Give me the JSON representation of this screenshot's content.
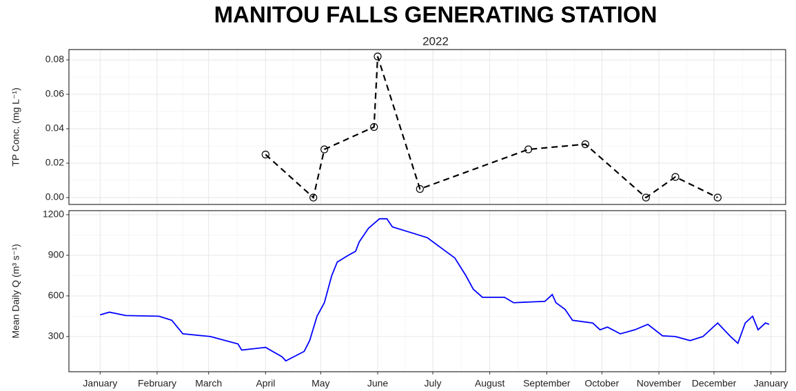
{
  "chart_data": [
    {
      "type": "line",
      "title": "MANITOU FALLS GENERATING STATION",
      "subtitle": "2022",
      "ylabel": "TP Conc. (mg L⁻¹)",
      "x": [
        "2022-04-01",
        "2022-04-27",
        "2022-05-03",
        "2022-05-30",
        "2022-06-01",
        "2022-06-24",
        "2022-08-22",
        "2022-09-22",
        "2022-10-25",
        "2022-11-10",
        "2022-12-03"
      ],
      "values": [
        0.025,
        0.0,
        0.028,
        0.041,
        0.082,
        0.005,
        0.028,
        0.031,
        0.0,
        0.012,
        0.0
      ],
      "color": "#000000",
      "linestyle": "dashed",
      "markers": true,
      "xlim": [
        "2021-12-15",
        "2023-01-09"
      ],
      "ylim": [
        -0.004,
        0.086
      ],
      "yticks": [
        {
          "value": 0,
          "label": "0.00"
        },
        {
          "value": 0.02,
          "label": "0.02"
        },
        {
          "value": 0.04,
          "label": "0.04"
        },
        {
          "value": 0.06,
          "label": "0.06"
        },
        {
          "value": 0.08,
          "label": "0.08"
        }
      ],
      "grid": true
    },
    {
      "type": "line",
      "ylabel": "Mean Daily Q (m³ s⁻¹)",
      "x": [
        "2022-01-01",
        "2022-01-06",
        "2022-01-15",
        "2022-02-02",
        "2022-02-09",
        "2022-02-15",
        "2022-03-02",
        "2022-03-17",
        "2022-03-19",
        "2022-04-01",
        "2022-04-10",
        "2022-04-12",
        "2022-04-22",
        "2022-04-25",
        "2022-04-29",
        "2022-05-01",
        "2022-05-03",
        "2022-05-07",
        "2022-05-10",
        "2022-05-16",
        "2022-05-20",
        "2022-05-22",
        "2022-05-27",
        "2022-06-02",
        "2022-06-06",
        "2022-06-09",
        "2022-06-21",
        "2022-06-28",
        "2022-07-06",
        "2022-07-13",
        "2022-07-19",
        "2022-07-23",
        "2022-07-28",
        "2022-08-09",
        "2022-08-14",
        "2022-08-31",
        "2022-09-04",
        "2022-09-06",
        "2022-09-11",
        "2022-09-15",
        "2022-09-26",
        "2022-09-30",
        "2022-10-04",
        "2022-10-11",
        "2022-10-19",
        "2022-10-26",
        "2022-11-03",
        "2022-11-10",
        "2022-11-18",
        "2022-11-25",
        "2022-12-03",
        "2022-12-10",
        "2022-12-14",
        "2022-12-18",
        "2022-12-22",
        "2022-12-25",
        "2022-12-29",
        "2022-12-31"
      ],
      "values": [
        460,
        480,
        455,
        450,
        420,
        320,
        300,
        245,
        200,
        220,
        150,
        120,
        190,
        270,
        450,
        500,
        550,
        750,
        850,
        900,
        930,
        1000,
        1100,
        1170,
        1170,
        1110,
        1060,
        1030,
        950,
        880,
        750,
        650,
        590,
        590,
        550,
        560,
        610,
        550,
        500,
        420,
        400,
        350,
        370,
        320,
        350,
        390,
        305,
        300,
        270,
        300,
        400,
        300,
        250,
        400,
        450,
        350,
        400,
        390
      ],
      "color": "#0000ff",
      "xlim": [
        "2021-12-15",
        "2023-01-09"
      ],
      "xticks": [
        {
          "value": "2022-01-01",
          "label": "January"
        },
        {
          "value": "2022-02-01",
          "label": "February"
        },
        {
          "value": "2022-03-01",
          "label": "March"
        },
        {
          "value": "2022-04-01",
          "label": "April"
        },
        {
          "value": "2022-05-01",
          "label": "May"
        },
        {
          "value": "2022-06-01",
          "label": "June"
        },
        {
          "value": "2022-07-01",
          "label": "July"
        },
        {
          "value": "2022-08-01",
          "label": "August"
        },
        {
          "value": "2022-09-01",
          "label": "September"
        },
        {
          "value": "2022-10-01",
          "label": "October"
        },
        {
          "value": "2022-11-01",
          "label": "November"
        },
        {
          "value": "2022-12-01",
          "label": "December"
        },
        {
          "value": "2023-01-01",
          "label": "January"
        }
      ],
      "ylim": [
        40,
        1230
      ],
      "yticks": [
        300,
        600,
        900,
        1200
      ],
      "grid": true
    }
  ]
}
